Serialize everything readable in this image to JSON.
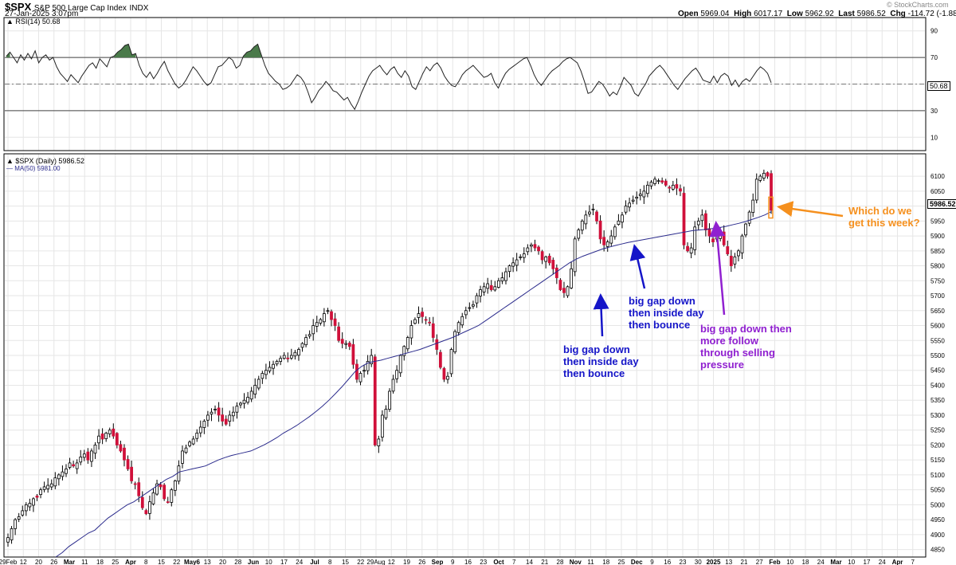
{
  "header": {
    "symbol": "$SPX",
    "name": "S&P 500 Large Cap Index",
    "exchange": "INDX",
    "datetime": "27-Jan-2025 3:07pm",
    "open_label": "Open",
    "open": "5969.04",
    "high_label": "High",
    "high": "6017.17",
    "low_label": "Low",
    "low": "5962.92",
    "last_label": "Last",
    "last": "5986.52",
    "chg_label": "Chg",
    "chg": "-114.72 (-1.88%)",
    "brand": "© StockCharts.com"
  },
  "rsi_panel": {
    "label": "RSI(14) 50.68",
    "last_value_label": "50.68"
  },
  "price_panel": {
    "legend_price": "$SPX (Daily) 5986.52",
    "legend_ma": "MA(50) 5981.00",
    "last_price_label": "5986.52"
  },
  "annotations": {
    "nov_gap_lines": [
      "big gap down",
      "then inside day",
      "then bounce"
    ],
    "oct_gap_lines": [
      "big gap down",
      "then inside day",
      "then bounce"
    ],
    "dec_gap_lines": [
      "big gap down then",
      "more follow",
      "through selling",
      "pressure"
    ],
    "question_lines": [
      "Which do we",
      "get this week?"
    ]
  },
  "colors": {
    "up_candle": "#ffffff",
    "down_candle": "#d0103a",
    "ma_line": "#2b2b8c",
    "rsi_fill": "#4a7a4a",
    "blue_arrow": "#1515c8",
    "purple_arrow": "#9020d0",
    "orange_arrow": "#f5901e",
    "grid": "#e6e6e6"
  },
  "chart_data": [
    {
      "type": "line",
      "title": "RSI(14) 50.68",
      "ylim": [
        0,
        100
      ],
      "y_ticks": [
        10,
        30,
        50,
        70,
        90
      ],
      "reference_lines": [
        30,
        50,
        70
      ],
      "x_ticks": [
        "29Feb",
        "12",
        "20",
        "26",
        "Mar",
        "11",
        "18",
        "25",
        "Apr",
        "8",
        "15",
        "22",
        "May6",
        "13",
        "20",
        "28",
        "Jun",
        "10",
        "17",
        "24",
        "Jul",
        "8",
        "15",
        "22",
        "29Aug",
        "12",
        "19",
        "26",
        "Sep",
        "9",
        "16",
        "23",
        "Oct",
        "7",
        "14",
        "21",
        "28",
        "Nov",
        "11",
        "18",
        "25",
        "Dec",
        "9",
        "16",
        "23",
        "30",
        "2025",
        "13",
        "21",
        "27",
        "Feb",
        "10",
        "18",
        "24",
        "Mar",
        "10",
        "17",
        "24",
        "Apr",
        "7"
      ],
      "values": [
        71,
        74,
        70,
        66,
        72,
        68,
        73,
        69,
        75,
        66,
        70,
        72,
        68,
        70,
        63,
        58,
        55,
        52,
        57,
        54,
        51,
        56,
        60,
        64,
        66,
        62,
        69,
        66,
        63,
        70,
        71,
        74,
        76,
        79,
        80,
        72,
        73,
        64,
        58,
        55,
        59,
        54,
        58,
        63,
        67,
        60,
        55,
        50,
        47,
        49,
        53,
        58,
        63,
        60,
        56,
        52,
        49,
        51,
        57,
        63,
        64,
        67,
        70,
        68,
        62,
        64,
        71,
        74,
        75,
        78,
        80,
        72,
        64,
        58,
        55,
        52,
        50,
        46,
        47,
        49,
        53,
        57,
        55,
        51,
        44,
        36,
        40,
        45,
        48,
        52,
        49,
        45,
        44,
        41,
        38,
        40,
        35,
        31,
        37,
        44,
        50,
        56,
        60,
        62,
        64,
        60,
        57,
        61,
        63,
        58,
        55,
        60,
        56,
        48,
        46,
        52,
        58,
        63,
        60,
        64,
        66,
        62,
        56,
        52,
        49,
        48,
        52,
        57,
        60,
        62,
        64,
        61,
        58,
        55,
        56,
        58,
        51,
        47,
        53,
        58,
        61,
        63,
        65,
        67,
        69,
        70,
        64,
        57,
        52,
        49,
        53,
        57,
        60,
        62,
        64,
        67,
        69,
        70,
        68,
        66,
        60,
        52,
        43,
        44,
        48,
        52,
        50,
        46,
        41,
        44,
        42,
        48,
        55,
        52,
        49,
        43,
        41,
        46,
        50,
        56,
        59,
        62,
        64,
        61,
        57,
        53,
        49,
        46,
        50,
        54,
        57,
        60,
        62,
        58,
        53,
        52,
        51,
        56,
        51,
        56,
        58,
        56,
        49,
        53,
        48,
        52,
        54,
        52,
        56,
        60,
        63,
        61,
        58,
        51
      ]
    },
    {
      "type": "line",
      "title": "$SPX (Daily) 5986.52",
      "ylim": [
        4825,
        6175
      ],
      "y_ticks": [
        4850,
        4900,
        4950,
        5000,
        5050,
        5100,
        5150,
        5200,
        5250,
        5300,
        5350,
        5400,
        5450,
        5500,
        5550,
        5600,
        5650,
        5700,
        5750,
        5800,
        5850,
        5900,
        5950,
        6000,
        6050,
        6100
      ],
      "x_ticks": [
        "29Feb",
        "12",
        "20",
        "26",
        "Mar",
        "11",
        "18",
        "25",
        "Apr",
        "8",
        "15",
        "22",
        "May6",
        "13",
        "20",
        "28",
        "Jun",
        "10",
        "17",
        "24",
        "Jul",
        "8",
        "15",
        "22",
        "29Aug",
        "12",
        "19",
        "26",
        "Sep",
        "9",
        "16",
        "23",
        "Oct",
        "7",
        "14",
        "21",
        "28",
        "Nov",
        "11",
        "18",
        "25",
        "Dec",
        "9",
        "16",
        "23",
        "30",
        "2025",
        "13",
        "21",
        "27",
        "Feb",
        "10",
        "18",
        "24",
        "Mar",
        "10",
        "17",
        "24",
        "Apr",
        "7"
      ],
      "series": [
        {
          "name": "$SPX (Daily) 5986.52",
          "values": [
            4890,
            4920,
            4950,
            4960,
            4980,
            5000,
            5005,
            5020,
            5025,
            5050,
            5060,
            5065,
            5070,
            5090,
            5100,
            5110,
            5120,
            5140,
            5130,
            5140,
            5160,
            5170,
            5150,
            5180,
            5200,
            5230,
            5220,
            5240,
            5250,
            5230,
            5200,
            5180,
            5150,
            5120,
            5080,
            5070,
            5030,
            4990,
            4970,
            5010,
            5040,
            5070,
            5060,
            5020,
            5010,
            5050,
            5080,
            5130,
            5180,
            5190,
            5210,
            5220,
            5240,
            5260,
            5280,
            5300,
            5310,
            5320,
            5300,
            5280,
            5270,
            5300,
            5310,
            5330,
            5340,
            5350,
            5360,
            5380,
            5400,
            5420,
            5440,
            5450,
            5460,
            5470,
            5480,
            5490,
            5500,
            5490,
            5500,
            5510,
            5520,
            5540,
            5560,
            5570,
            5600,
            5610,
            5620,
            5640,
            5650,
            5620,
            5600,
            5550,
            5540,
            5540,
            5530,
            5470,
            5420,
            5440,
            5450,
            5480,
            5500,
            5200,
            5220,
            5300,
            5320,
            5380,
            5420,
            5450,
            5500,
            5530,
            5560,
            5600,
            5620,
            5640,
            5630,
            5620,
            5610,
            5560,
            5520,
            5460,
            5420,
            5430,
            5520,
            5580,
            5610,
            5630,
            5650,
            5660,
            5670,
            5700,
            5720,
            5730,
            5740,
            5720,
            5730,
            5750,
            5760,
            5780,
            5800,
            5810,
            5820,
            5830,
            5840,
            5860,
            5870,
            5860,
            5850,
            5820,
            5830,
            5810,
            5790,
            5760,
            5720,
            5710,
            5730,
            5790,
            5890,
            5920,
            5950,
            5970,
            5980,
            5990,
            5950,
            5890,
            5870,
            5880,
            5900,
            5930,
            5950,
            5970,
            6000,
            6010,
            6020,
            6030,
            6040,
            6050,
            6070,
            6080,
            6090,
            6085,
            6080,
            6070,
            6060,
            6070,
            6060,
            6050,
            5870,
            5850,
            5860,
            5930,
            5950,
            5970,
            5920,
            5900,
            5880,
            5900,
            5910,
            5870,
            5840,
            5800,
            5830,
            5850,
            5900,
            5940,
            5980,
            6020,
            6090,
            6100,
            6110,
            6100,
            5986
          ]
        },
        {
          "name": "MA(50) 5981.00",
          "values": [
            4825,
            4840,
            4860,
            4875,
            4890,
            4905,
            4915,
            4935,
            4955,
            4970,
            4985,
            5000,
            5010,
            5025,
            5040,
            5055,
            5070,
            5085,
            5095,
            5110,
            5115,
            5120,
            5125,
            5130,
            5140,
            5150,
            5158,
            5165,
            5170,
            5175,
            5180,
            5190,
            5200,
            5212,
            5225,
            5240,
            5252,
            5265,
            5280,
            5295,
            5312,
            5330,
            5350,
            5372,
            5395,
            5420,
            5445,
            5463,
            5475,
            5480,
            5484,
            5490,
            5496,
            5502,
            5508,
            5514,
            5520,
            5528,
            5536,
            5544,
            5552,
            5560,
            5570,
            5580,
            5590,
            5600,
            5615,
            5630,
            5645,
            5660,
            5675,
            5690,
            5705,
            5720,
            5735,
            5750,
            5765,
            5780,
            5795,
            5810,
            5822,
            5832,
            5840,
            5848,
            5856,
            5862,
            5868,
            5873,
            5878,
            5882,
            5886,
            5890,
            5894,
            5898,
            5902,
            5906,
            5910,
            5914,
            5918,
            5920,
            5922,
            5925,
            5928,
            5932,
            5937,
            5942,
            5948,
            5955,
            5962,
            5970,
            5981
          ]
        }
      ],
      "up_color": "#ffffff",
      "down_color": "#d0103a"
    }
  ]
}
